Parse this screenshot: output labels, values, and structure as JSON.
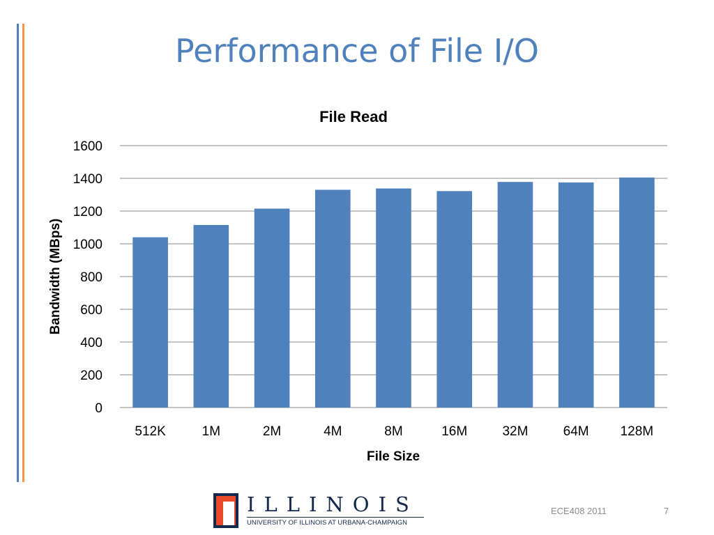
{
  "slide": {
    "title": "Performance of File I/O",
    "footer_course": "ECE408 2011",
    "page_number": "7"
  },
  "logo": {
    "wordmark": "ILLINOIS",
    "subtitle": "UNIVERSITY OF ILLINOIS AT URBANA-CHAMPAIGN"
  },
  "colors": {
    "title": "#4f81bd",
    "bar": "#4f81bd",
    "accent_blue": "#4f81bd",
    "accent_orange": "#f79646",
    "gridline": "#888888"
  },
  "chart_data": {
    "type": "bar",
    "title": "File Read",
    "xlabel": "File Size",
    "ylabel": "Bandwidth (MBps)",
    "categories": [
      "512K",
      "1M",
      "2M",
      "4M",
      "8M",
      "16M",
      "32M",
      "64M",
      "128M"
    ],
    "values": [
      1040,
      1115,
      1215,
      1330,
      1338,
      1322,
      1378,
      1375,
      1405
    ],
    "ylim": [
      0,
      1600
    ],
    "yticks": [
      "0",
      "200",
      "400",
      "600",
      "800",
      "1000",
      "1200",
      "1400",
      "1600"
    ],
    "grid": true,
    "legend": "none"
  }
}
